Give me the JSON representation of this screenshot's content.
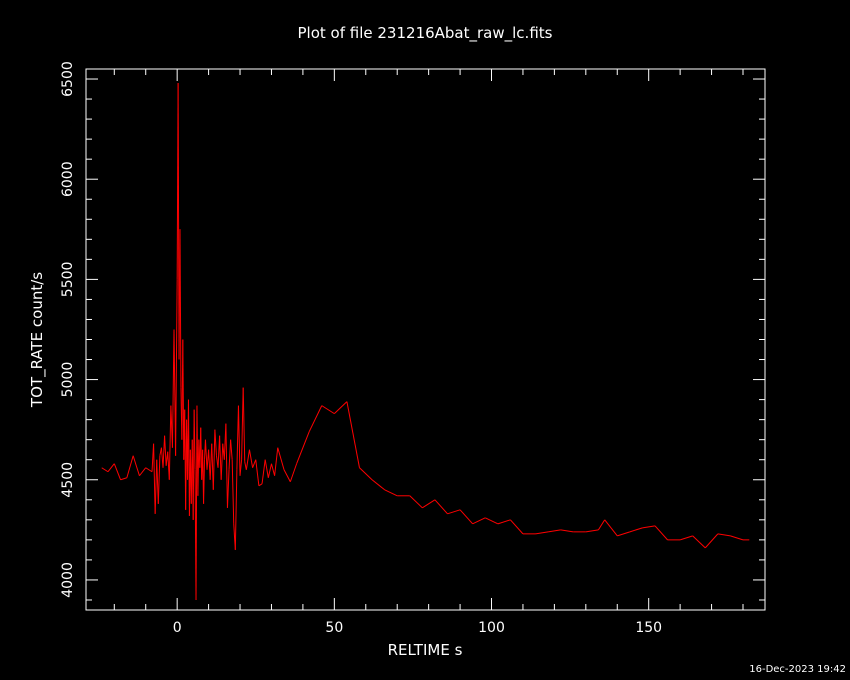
{
  "chart_data": {
    "type": "line",
    "title": "Plot of file 231216Abat_raw_lc.fits",
    "xlabel": "RELTIME  s",
    "ylabel": "TOT_RATE  count/s",
    "xlim": [
      -29,
      187
    ],
    "ylim": [
      3850,
      6550
    ],
    "xticks": [
      0,
      50,
      100,
      150
    ],
    "yticks": [
      4000,
      4500,
      5000,
      5500,
      6000,
      6500
    ],
    "grid": false,
    "series": [
      {
        "color": "#ff0000",
        "x": [
          -24,
          -22,
          -20,
          -18,
          -16,
          -14,
          -12,
          -10,
          -8,
          -7.5,
          -7,
          -6.5,
          -6,
          -5.5,
          -5,
          -4.5,
          -4,
          -3.5,
          -3,
          -2.5,
          -2,
          -1.5,
          -1,
          -0.5,
          0,
          0.3,
          0.6,
          0.9,
          1.2,
          1.5,
          1.8,
          2.1,
          2.4,
          2.7,
          3,
          3.3,
          3.6,
          3.9,
          4.2,
          4.5,
          4.8,
          5.1,
          5.4,
          5.7,
          6,
          6.3,
          6.6,
          6.9,
          7.2,
          7.5,
          7.8,
          8.1,
          8.4,
          8.7,
          9,
          9.5,
          10,
          10.5,
          11,
          11.5,
          12,
          12.5,
          13,
          13.5,
          14,
          14.5,
          15,
          15.5,
          16,
          16.5,
          17,
          17.5,
          18,
          18.5,
          19,
          19.5,
          20,
          20.5,
          21,
          21.5,
          22,
          23,
          24,
          25,
          26,
          27,
          28,
          29,
          30,
          31,
          32,
          34,
          36,
          38,
          42,
          46,
          50,
          54,
          58,
          62,
          66,
          70,
          74,
          78,
          82,
          86,
          90,
          94,
          98,
          102,
          106,
          110,
          114,
          118,
          122,
          126,
          130,
          134,
          136,
          140,
          144,
          148,
          152,
          156,
          160,
          164,
          168,
          172,
          176,
          180,
          182
        ],
        "values": [
          4560,
          4540,
          4580,
          4500,
          4510,
          4620,
          4520,
          4560,
          4540,
          4680,
          4330,
          4600,
          4380,
          4620,
          4660,
          4560,
          4720,
          4570,
          4640,
          4500,
          4870,
          4660,
          5250,
          4620,
          5500,
          6480,
          5100,
          5750,
          4960,
          4700,
          5200,
          4600,
          4850,
          4350,
          4800,
          4500,
          4900,
          4320,
          4650,
          4380,
          4700,
          4300,
          4850,
          4550,
          3900,
          4870,
          4420,
          4700,
          4560,
          4760,
          4500,
          4650,
          4380,
          4600,
          4700,
          4550,
          4650,
          4500,
          4680,
          4450,
          4750,
          4620,
          4560,
          4720,
          4500,
          4680,
          4600,
          4780,
          4360,
          4550,
          4700,
          4600,
          4280,
          4150,
          4550,
          4870,
          4520,
          4600,
          4960,
          4590,
          4550,
          4650,
          4560,
          4600,
          4470,
          4480,
          4600,
          4510,
          4580,
          4520,
          4660,
          4550,
          4490,
          4580,
          4740,
          4870,
          4830,
          4890,
          4560,
          4500,
          4450,
          4420,
          4420,
          4360,
          4400,
          4330,
          4350,
          4280,
          4310,
          4280,
          4300,
          4230,
          4230,
          4240,
          4250,
          4240,
          4240,
          4250,
          4300,
          4220,
          4240,
          4260,
          4270,
          4200,
          4200,
          4220,
          4160,
          4230,
          4220,
          4200,
          4200
        ]
      }
    ]
  },
  "timestamp": "16-Dec-2023 19:42"
}
